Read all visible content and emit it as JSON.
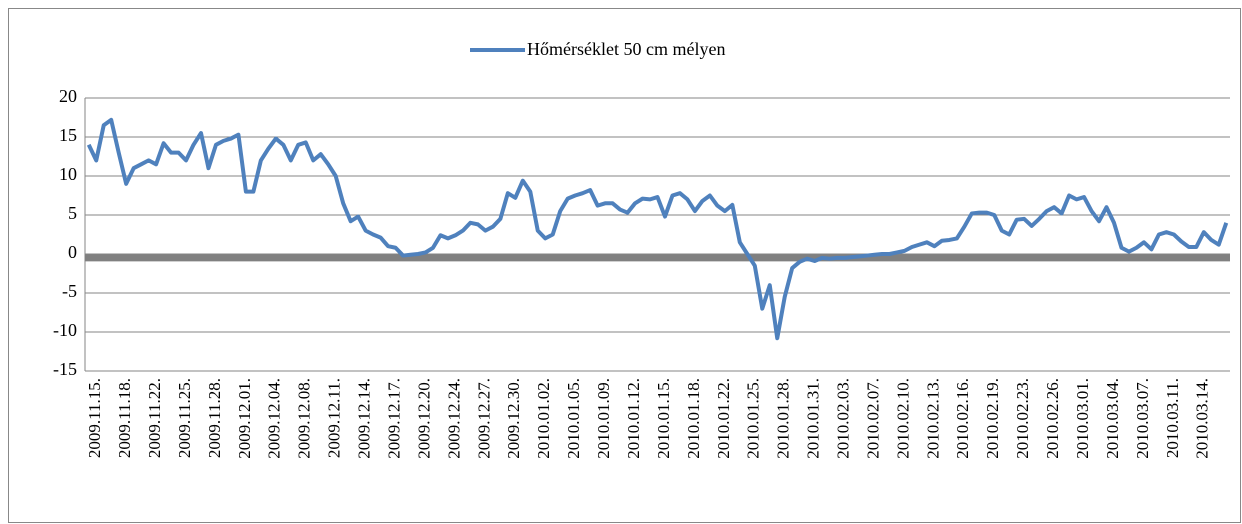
{
  "chart_data": {
    "type": "line",
    "categories": [
      null,
      "2009.11.15.",
      null,
      null,
      null,
      "2009.11.18.",
      null,
      null,
      null,
      "2009.11.22.",
      null,
      null,
      null,
      "2009.11.25.",
      null,
      null,
      null,
      "2009.11.28.",
      null,
      null,
      null,
      "2009.12.01.",
      null,
      null,
      null,
      "2009.12.04.",
      null,
      null,
      null,
      "2009.12.08.",
      null,
      null,
      null,
      "2009.12.11.",
      null,
      null,
      null,
      "2009.12.14.",
      null,
      null,
      null,
      "2009.12.17.",
      null,
      null,
      null,
      "2009.12.20.",
      null,
      null,
      null,
      "2009.12.24.",
      null,
      null,
      null,
      "2009.12.27.",
      null,
      null,
      null,
      "2009.12.30.",
      null,
      null,
      null,
      "2010.01.02.",
      null,
      null,
      null,
      "2010.01.05.",
      null,
      null,
      null,
      "2010.01.09.",
      null,
      null,
      null,
      "2010.01.12.",
      null,
      null,
      null,
      "2010.01.15.",
      null,
      null,
      null,
      "2010.01.18.",
      null,
      null,
      null,
      "2010.01.22.",
      null,
      null,
      null,
      "2010.01.25.",
      null,
      null,
      null,
      "2010.01.28.",
      null,
      null,
      null,
      "2010.01.31.",
      null,
      null,
      null,
      "2010.02.03.",
      null,
      null,
      null,
      "2010.02.07.",
      null,
      null,
      null,
      "2010.02.10.",
      null,
      null,
      null,
      "2010.02.13.",
      null,
      null,
      null,
      "2010.02.16.",
      null,
      null,
      null,
      "2010.02.19.",
      null,
      null,
      null,
      "2010.02.23.",
      null,
      null,
      null,
      "2010.02.26.",
      null,
      null,
      null,
      "2010.03.01.",
      null,
      null,
      null,
      "2010.03.04.",
      null,
      null,
      null,
      "2010.03.07.",
      null,
      null,
      null,
      "2010.03.11.",
      null,
      null,
      null,
      "2010.03.14.",
      null,
      null,
      null
    ],
    "series": [
      {
        "name": "Hőmérséklet 50 cm mélyen",
        "color": "#4f81bd",
        "values": [
          14,
          12,
          16.5,
          17.2,
          13,
          9,
          11,
          11.5,
          12,
          11.5,
          14.2,
          13,
          13,
          12,
          14,
          15.5,
          11,
          14,
          14.5,
          14.8,
          15.3,
          8,
          8,
          12,
          13.5,
          14.8,
          14,
          12,
          14,
          14.3,
          12,
          12.8,
          11.5,
          10,
          6.5,
          4.2,
          4.8,
          3,
          2.5,
          2.1,
          1,
          0.8,
          -0.2,
          -0.1,
          0,
          0.2,
          0.8,
          2.4,
          2,
          2.4,
          3,
          4,
          3.8,
          3,
          3.5,
          4.5,
          7.8,
          7.2,
          9.4,
          8,
          3,
          2,
          2.5,
          5.5,
          7.1,
          7.5,
          7.8,
          8.2,
          6.2,
          6.5,
          6.5,
          5.7,
          5.3,
          6.5,
          7.1,
          7,
          7.3,
          4.8,
          7.5,
          7.8,
          7,
          5.5,
          6.8,
          7.5,
          6.2,
          5.5,
          6.3,
          1.5,
          0,
          -1.5,
          -7,
          -4,
          -10.8,
          -5.5,
          -1.8,
          -1,
          -0.6,
          -0.9,
          -0.5,
          -0.6,
          -0.5,
          -0.5,
          -0.4,
          -0.3,
          -0.2,
          -0.1,
          0,
          0,
          0.2,
          0.4,
          0.9,
          1.2,
          1.5,
          1,
          1.7,
          1.8,
          2,
          3.5,
          5.2,
          5.3,
          5.3,
          5,
          3,
          2.5,
          4.4,
          4.5,
          3.6,
          4.5,
          5.5,
          6,
          5.2,
          7.5,
          7,
          7.3,
          5.5,
          4.2,
          6,
          4,
          0.8,
          0.3,
          0.8,
          1.5,
          0.6,
          2.5,
          2.8,
          2.5,
          1.6,
          0.9,
          0.9,
          2.8,
          1.8,
          1.2,
          4
        ]
      }
    ],
    "reference_line": {
      "value": -0.5,
      "color": "#808080"
    },
    "ylim": [
      -15,
      20
    ],
    "yticks": [
      -15,
      -10,
      -5,
      0,
      5,
      10,
      15,
      20
    ],
    "grid": true,
    "legend": "top"
  }
}
